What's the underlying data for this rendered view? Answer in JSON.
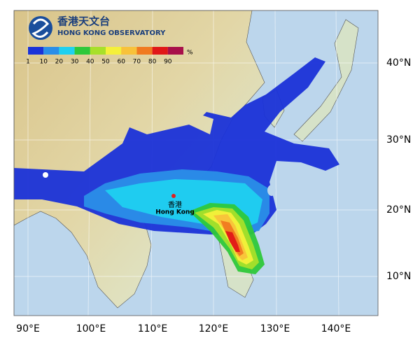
{
  "logo": {
    "chinese": "香港天文台",
    "english": "HONG KONG OBSERVATORY"
  },
  "legend": {
    "labels": [
      "1",
      "10",
      "20",
      "30",
      "40",
      "50",
      "60",
      "70",
      "80",
      "90"
    ],
    "colors": [
      "#1a32d8",
      "#2a8ee8",
      "#1fd0f0",
      "#2ec83a",
      "#a8e02a",
      "#f5f03a",
      "#f8c23a",
      "#f07a20",
      "#e01818",
      "#a8104a"
    ],
    "unit": "%"
  },
  "axes": {
    "longitude": [
      "90°E",
      "100°E",
      "110°E",
      "120°E",
      "130°E",
      "140°E"
    ],
    "latitude": [
      "40°N",
      "30°N",
      "20°N",
      "10°N"
    ]
  },
  "place": {
    "chinese": "香港",
    "english": "Hong Kong"
  }
}
